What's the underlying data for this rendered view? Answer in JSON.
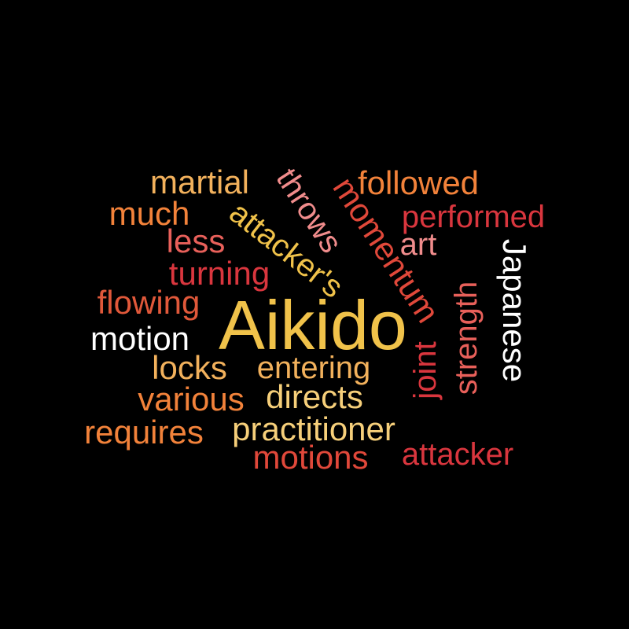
{
  "background_color": "#000000",
  "words": [
    {
      "text": "Aikido",
      "color": "#f0c24a",
      "orientation": "horizontal"
    },
    {
      "text": "motion",
      "color": "#ffffff",
      "orientation": "horizontal"
    },
    {
      "text": "Japanese",
      "color": "#ffffff",
      "orientation": "vertical"
    },
    {
      "text": "martial",
      "color": "#f2b15c",
      "orientation": "horizontal"
    },
    {
      "text": "throws",
      "color": "#f08c8c",
      "orientation": "diagonal"
    },
    {
      "text": "momentum",
      "color": "#e0483a",
      "orientation": "diagonal"
    },
    {
      "text": "followed",
      "color": "#f2823a",
      "orientation": "horizontal"
    },
    {
      "text": "much",
      "color": "#f2823a",
      "orientation": "horizontal"
    },
    {
      "text": "attacker's",
      "color": "#f0c24a",
      "orientation": "diagonal"
    },
    {
      "text": "performed",
      "color": "#d9363e",
      "orientation": "horizontal"
    },
    {
      "text": "less",
      "color": "#e8605a",
      "orientation": "horizontal"
    },
    {
      "text": "art",
      "color": "#f08c8c",
      "orientation": "horizontal"
    },
    {
      "text": "turning",
      "color": "#d9363e",
      "orientation": "horizontal"
    },
    {
      "text": "flowing",
      "color": "#e0583a",
      "orientation": "horizontal"
    },
    {
      "text": "strength",
      "color": "#e8605a",
      "orientation": "vertical"
    },
    {
      "text": "joint",
      "color": "#d9363e",
      "orientation": "vertical"
    },
    {
      "text": "locks",
      "color": "#f2b15c",
      "orientation": "horizontal"
    },
    {
      "text": "entering",
      "color": "#f2b15c",
      "orientation": "horizontal"
    },
    {
      "text": "various",
      "color": "#f2823a",
      "orientation": "horizontal"
    },
    {
      "text": "directs",
      "color": "#f6cf7a",
      "orientation": "horizontal"
    },
    {
      "text": "requires",
      "color": "#f2823a",
      "orientation": "horizontal"
    },
    {
      "text": "practitioner",
      "color": "#f6cf7a",
      "orientation": "horizontal"
    },
    {
      "text": "motions",
      "color": "#e0483a",
      "orientation": "horizontal"
    },
    {
      "text": "attacker",
      "color": "#d9363e",
      "orientation": "horizontal"
    }
  ]
}
